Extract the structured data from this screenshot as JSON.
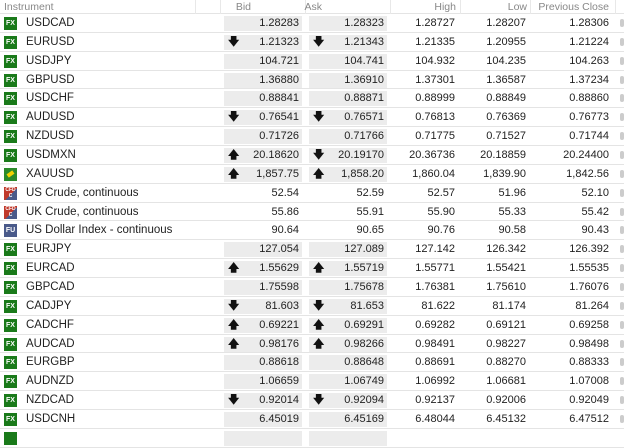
{
  "columns": {
    "instrument": "Instrument",
    "bid": "Bid",
    "ask": "Ask",
    "high": "High",
    "low": "Low",
    "prev": "Previous Close"
  },
  "rows": [
    {
      "type": "FX",
      "name": "USDCAD",
      "bid": "1.28283",
      "ask": "1.28323",
      "high": "1.28727",
      "low": "1.28207",
      "prev": "1.28306",
      "bid_dir": "",
      "ask_dir": "",
      "boxed": true
    },
    {
      "type": "FX",
      "name": "EURUSD",
      "bid": "1.21323",
      "ask": "1.21343",
      "high": "1.21335",
      "low": "1.20955",
      "prev": "1.21224",
      "bid_dir": "down",
      "ask_dir": "down",
      "boxed": true
    },
    {
      "type": "FX",
      "name": "USDJPY",
      "bid": "104.721",
      "ask": "104.741",
      "high": "104.932",
      "low": "104.235",
      "prev": "104.263",
      "bid_dir": "",
      "ask_dir": "",
      "boxed": true
    },
    {
      "type": "FX",
      "name": "GBPUSD",
      "bid": "1.36880",
      "ask": "1.36910",
      "high": "1.37301",
      "low": "1.36587",
      "prev": "1.37234",
      "bid_dir": "",
      "ask_dir": "",
      "boxed": true
    },
    {
      "type": "FX",
      "name": "USDCHF",
      "bid": "0.88841",
      "ask": "0.88871",
      "high": "0.88999",
      "low": "0.88849",
      "prev": "0.88860",
      "bid_dir": "",
      "ask_dir": "",
      "boxed": true
    },
    {
      "type": "FX",
      "name": "AUDUSD",
      "bid": "0.76541",
      "ask": "0.76571",
      "high": "0.76813",
      "low": "0.76369",
      "prev": "0.76773",
      "bid_dir": "down",
      "ask_dir": "down",
      "boxed": true
    },
    {
      "type": "FX",
      "name": "NZDUSD",
      "bid": "0.71726",
      "ask": "0.71766",
      "high": "0.71775",
      "low": "0.71527",
      "prev": "0.71744",
      "bid_dir": "",
      "ask_dir": "",
      "boxed": true
    },
    {
      "type": "FX",
      "name": "USDMXN",
      "bid": "20.18620",
      "ask": "20.19170",
      "high": "20.36736",
      "low": "20.18859",
      "prev": "20.24400",
      "bid_dir": "up",
      "ask_dir": "down",
      "boxed": true
    },
    {
      "type": "GOLD",
      "name": "XAUUSD",
      "bid": "1,857.75",
      "ask": "1,858.20",
      "high": "1,860.04",
      "low": "1,839.90",
      "prev": "1,842.56",
      "bid_dir": "up",
      "ask_dir": "up",
      "boxed": true
    },
    {
      "type": "CFD",
      "name": "US Crude, continuous",
      "bid": "52.54",
      "ask": "52.59",
      "high": "52.57",
      "low": "51.96",
      "prev": "52.10",
      "bid_dir": "",
      "ask_dir": "",
      "boxed": false
    },
    {
      "type": "CFD",
      "name": "UK Crude, continuous",
      "bid": "55.86",
      "ask": "55.91",
      "high": "55.90",
      "low": "55.33",
      "prev": "55.42",
      "bid_dir": "",
      "ask_dir": "",
      "boxed": false
    },
    {
      "type": "FU",
      "name": "US Dollar Index - continuous",
      "bid": "90.64",
      "ask": "90.65",
      "high": "90.76",
      "low": "90.58",
      "prev": "90.43",
      "bid_dir": "",
      "ask_dir": "",
      "boxed": false
    },
    {
      "type": "FX",
      "name": "EURJPY",
      "bid": "127.054",
      "ask": "127.089",
      "high": "127.142",
      "low": "126.342",
      "prev": "126.392",
      "bid_dir": "",
      "ask_dir": "",
      "boxed": true
    },
    {
      "type": "FX",
      "name": "EURCAD",
      "bid": "1.55629",
      "ask": "1.55719",
      "high": "1.55771",
      "low": "1.55421",
      "prev": "1.55535",
      "bid_dir": "up",
      "ask_dir": "up",
      "boxed": true
    },
    {
      "type": "FX",
      "name": "GBPCAD",
      "bid": "1.75598",
      "ask": "1.75678",
      "high": "1.76381",
      "low": "1.75610",
      "prev": "1.76076",
      "bid_dir": "",
      "ask_dir": "",
      "boxed": true
    },
    {
      "type": "FX",
      "name": "CADJPY",
      "bid": "81.603",
      "ask": "81.653",
      "high": "81.622",
      "low": "81.174",
      "prev": "81.264",
      "bid_dir": "down",
      "ask_dir": "down",
      "boxed": true
    },
    {
      "type": "FX",
      "name": "CADCHF",
      "bid": "0.69221",
      "ask": "0.69291",
      "high": "0.69282",
      "low": "0.69121",
      "prev": "0.69258",
      "bid_dir": "up",
      "ask_dir": "up",
      "boxed": true
    },
    {
      "type": "FX",
      "name": "AUDCAD",
      "bid": "0.98176",
      "ask": "0.98266",
      "high": "0.98491",
      "low": "0.98227",
      "prev": "0.98498",
      "bid_dir": "up",
      "ask_dir": "up",
      "boxed": true
    },
    {
      "type": "FX",
      "name": "EURGBP",
      "bid": "0.88618",
      "ask": "0.88648",
      "high": "0.88691",
      "low": "0.88270",
      "prev": "0.88333",
      "bid_dir": "",
      "ask_dir": "",
      "boxed": true
    },
    {
      "type": "FX",
      "name": "AUDNZD",
      "bid": "1.06659",
      "ask": "1.06749",
      "high": "1.06992",
      "low": "1.06681",
      "prev": "1.07008",
      "bid_dir": "",
      "ask_dir": "",
      "boxed": true
    },
    {
      "type": "FX",
      "name": "NZDCAD",
      "bid": "0.92014",
      "ask": "0.92094",
      "high": "0.92137",
      "low": "0.92006",
      "prev": "0.92049",
      "bid_dir": "down",
      "ask_dir": "down",
      "boxed": true
    },
    {
      "type": "FX",
      "name": "USDCNH",
      "bid": "6.45019",
      "ask": "6.45169",
      "high": "6.48044",
      "low": "6.45132",
      "prev": "6.47512",
      "bid_dir": "",
      "ask_dir": "",
      "boxed": true
    }
  ],
  "badges": {
    "FX": "FX",
    "CFD": "CFD C",
    "FU": "FU",
    "GOLD": ""
  },
  "arrows": {
    "up": "🡅",
    "down": "🡇"
  }
}
